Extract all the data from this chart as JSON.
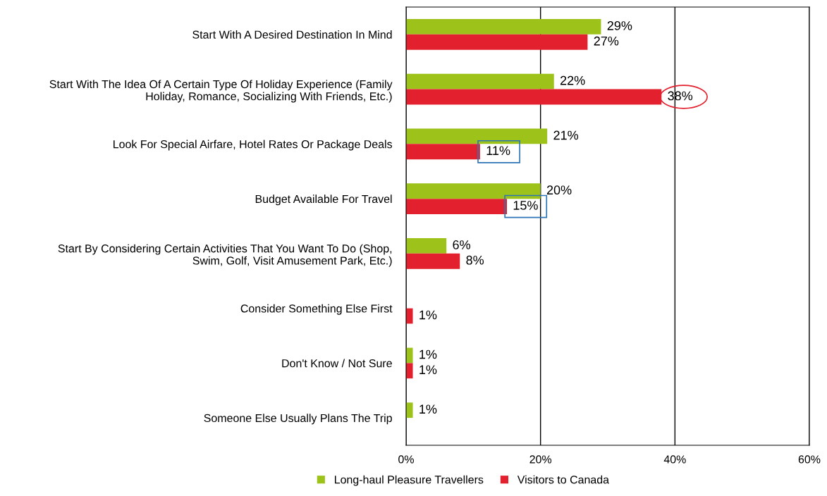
{
  "chart_data": {
    "type": "bar",
    "orientation": "horizontal",
    "categories": [
      "Start With A Desired Destination In Mind",
      "Start With The Idea Of A Certain Type Of Holiday Experience (Family\nHoliday, Romance, Socializing With Friends, Etc.)",
      "Look For Special Airfare, Hotel Rates Or Package Deals",
      "Budget Available For Travel",
      "Start By Considering Certain Activities That You Want To Do (Shop,\nSwim, Golf, Visit Amusement Park, Etc.)",
      "Consider Something Else First",
      "Don't Know / Not Sure",
      "Someone Else Usually Plans The Trip"
    ],
    "series": [
      {
        "name": "Long-haul Pleasure Travellers",
        "color": "#9dc31a",
        "values": [
          29,
          22,
          21,
          20,
          6,
          null,
          1,
          1
        ],
        "value_labels": [
          "29%",
          "22%",
          "21%",
          "20%",
          "6%",
          null,
          "1%",
          "1%"
        ]
      },
      {
        "name": "Visitors to Canada",
        "color": "#e3202e",
        "values": [
          27,
          38,
          11,
          15,
          8,
          1,
          1,
          null
        ],
        "value_labels": [
          "27%",
          "38%",
          "11%",
          "15%",
          "8%",
          "1%",
          "1%",
          null
        ]
      }
    ],
    "xlim": [
      0,
      60
    ],
    "xticks": [
      {
        "value": 0,
        "label": "0%"
      },
      {
        "value": 20,
        "label": "20%"
      },
      {
        "value": 40,
        "label": "40%"
      },
      {
        "value": 60,
        "label": "60%"
      }
    ],
    "grid": "x",
    "legend": "bottom"
  }
}
